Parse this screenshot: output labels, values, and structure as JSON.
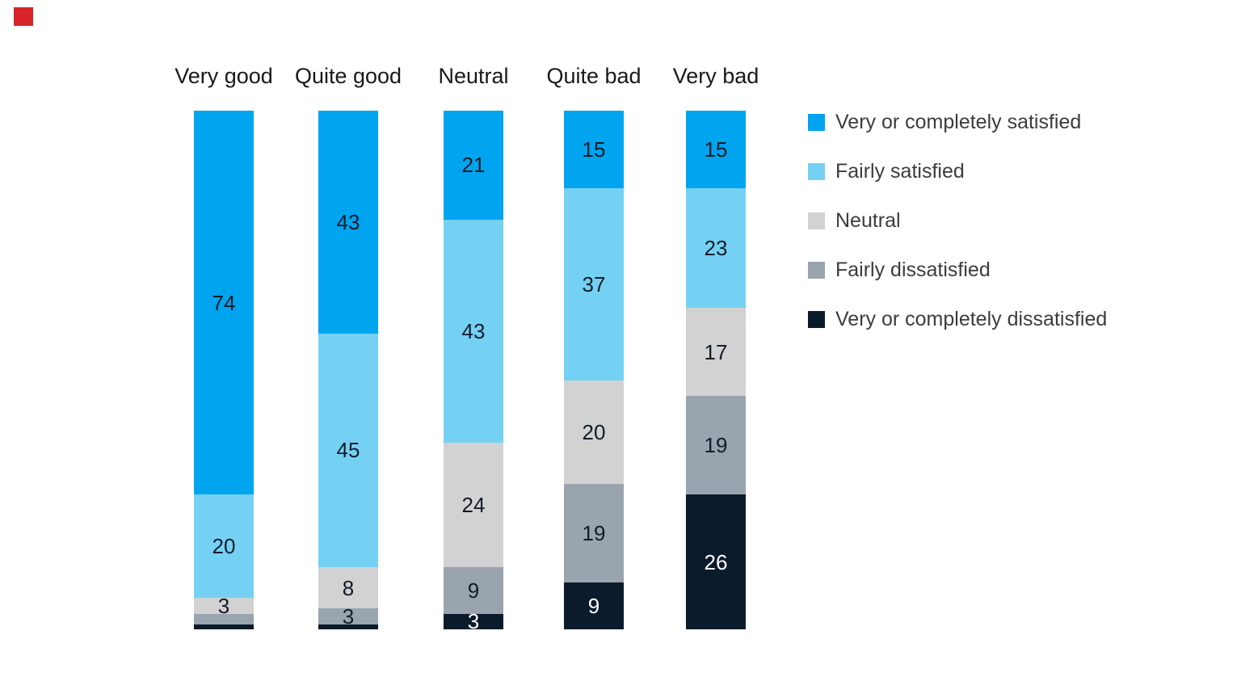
{
  "brand_mark": {
    "color": "#d8232a"
  },
  "chart_data": {
    "type": "bar",
    "stacked": true,
    "units": "%",
    "categories": [
      "Very good",
      "Quite good",
      "Neutral",
      "Quite bad",
      "Very bad"
    ],
    "series": [
      {
        "name": "Very or completely satisfied",
        "color": "#00a4ef",
        "values": [
          74,
          43,
          21,
          15,
          15
        ]
      },
      {
        "name": "Fairly satisfied",
        "color": "#75d1f3",
        "values": [
          20,
          45,
          43,
          37,
          23
        ]
      },
      {
        "name": "Neutral",
        "color": "#d2d2d2",
        "values": [
          3,
          8,
          24,
          20,
          17
        ]
      },
      {
        "name": "Fairly dissatisfied",
        "color": "#9aa4ae",
        "values": [
          2,
          3,
          9,
          19,
          19
        ]
      },
      {
        "name": "Very or completely dissatisfied",
        "color": "#0c1b2c",
        "values": [
          1,
          1,
          3,
          9,
          26
        ]
      }
    ],
    "label_min_value": 3,
    "ylim": [
      0,
      100
    ],
    "gridlines": false,
    "legend_position": "right"
  }
}
